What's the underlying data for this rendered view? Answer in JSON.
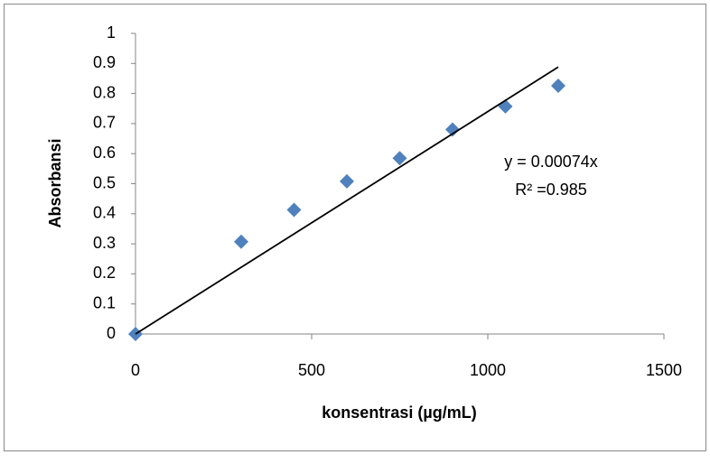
{
  "chart_data": {
    "type": "scatter",
    "x_label": "konsentrasi (µg/mL)",
    "y_label": "Absorbansi",
    "series": [
      {
        "type": "scatter",
        "color": "#4f81bd",
        "x": [
          0,
          300,
          450,
          600,
          750,
          900,
          1050,
          1200
        ],
        "values": [
          0,
          0.307,
          0.413,
          0.508,
          0.585,
          0.68,
          0.757,
          0.826
        ]
      },
      {
        "type": "line",
        "color": "#000000",
        "x": [
          0,
          1200
        ],
        "values": [
          0,
          0.888
        ]
      }
    ],
    "annotations": [
      "y = 0.00074x",
      "R² =0.985"
    ],
    "xlim": [
      0,
      1500
    ],
    "xticks": [
      0,
      500,
      1000,
      1500
    ],
    "ylim": [
      0,
      1
    ],
    "yticks": [
      0,
      0.1,
      0.2,
      0.3,
      0.4,
      0.5,
      0.6,
      0.7,
      0.8,
      0.9,
      1
    ],
    "grid": false
  }
}
